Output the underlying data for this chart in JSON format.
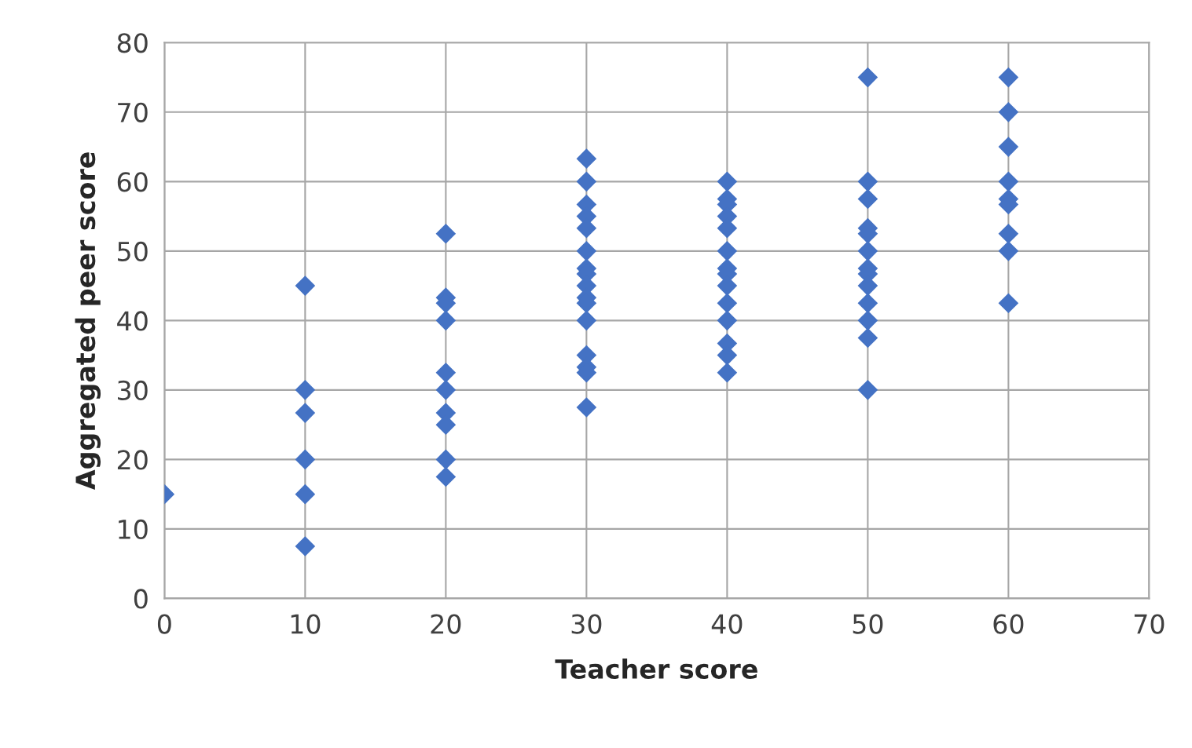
{
  "chart_data": {
    "type": "scatter",
    "xlabel": "Teacher score",
    "ylabel": "Aggregated peer score",
    "xlim": [
      0,
      70
    ],
    "xticks": [
      0,
      10,
      20,
      30,
      40,
      50,
      60,
      70
    ],
    "ylim": [
      0,
      80
    ],
    "yticks": [
      0,
      10,
      20,
      30,
      40,
      50,
      60,
      70,
      80
    ],
    "grid": true,
    "marker": "diamond",
    "series": [
      {
        "color": "#4472c4",
        "x": [
          0,
          10,
          10,
          10,
          10,
          10,
          10,
          20,
          20,
          20,
          20,
          20,
          20,
          20,
          20,
          20,
          20,
          30,
          30,
          30,
          30,
          30,
          30,
          30,
          30,
          30,
          30,
          30,
          30,
          30,
          30,
          30,
          30,
          40,
          40,
          40,
          40,
          40,
          40,
          40,
          40,
          40,
          40,
          40,
          40,
          40,
          40,
          50,
          50,
          50,
          50,
          50,
          50,
          50,
          50,
          50,
          50,
          50,
          50,
          50,
          60,
          60,
          60,
          60,
          60,
          60,
          60,
          60,
          60
        ],
        "values": [
          15,
          45,
          30,
          26.7,
          20,
          15,
          7.5,
          52.5,
          43.3,
          42.5,
          40,
          32.5,
          30,
          26.7,
          25,
          20,
          17.5,
          63.3,
          60,
          56.7,
          55,
          53.3,
          50,
          47.5,
          46.7,
          45,
          43.3,
          42.5,
          40,
          35,
          33.3,
          32.5,
          27.5,
          60,
          57.5,
          56.7,
          55,
          53.3,
          50,
          47.5,
          46.7,
          45,
          42.5,
          40,
          36.7,
          35,
          32.5,
          75,
          60,
          57.5,
          53.3,
          52.5,
          50,
          47.5,
          46.7,
          45,
          42.5,
          40,
          37.5,
          30,
          75,
          70,
          65,
          60,
          57.5,
          56.7,
          52.5,
          50,
          42.5
        ]
      }
    ]
  }
}
